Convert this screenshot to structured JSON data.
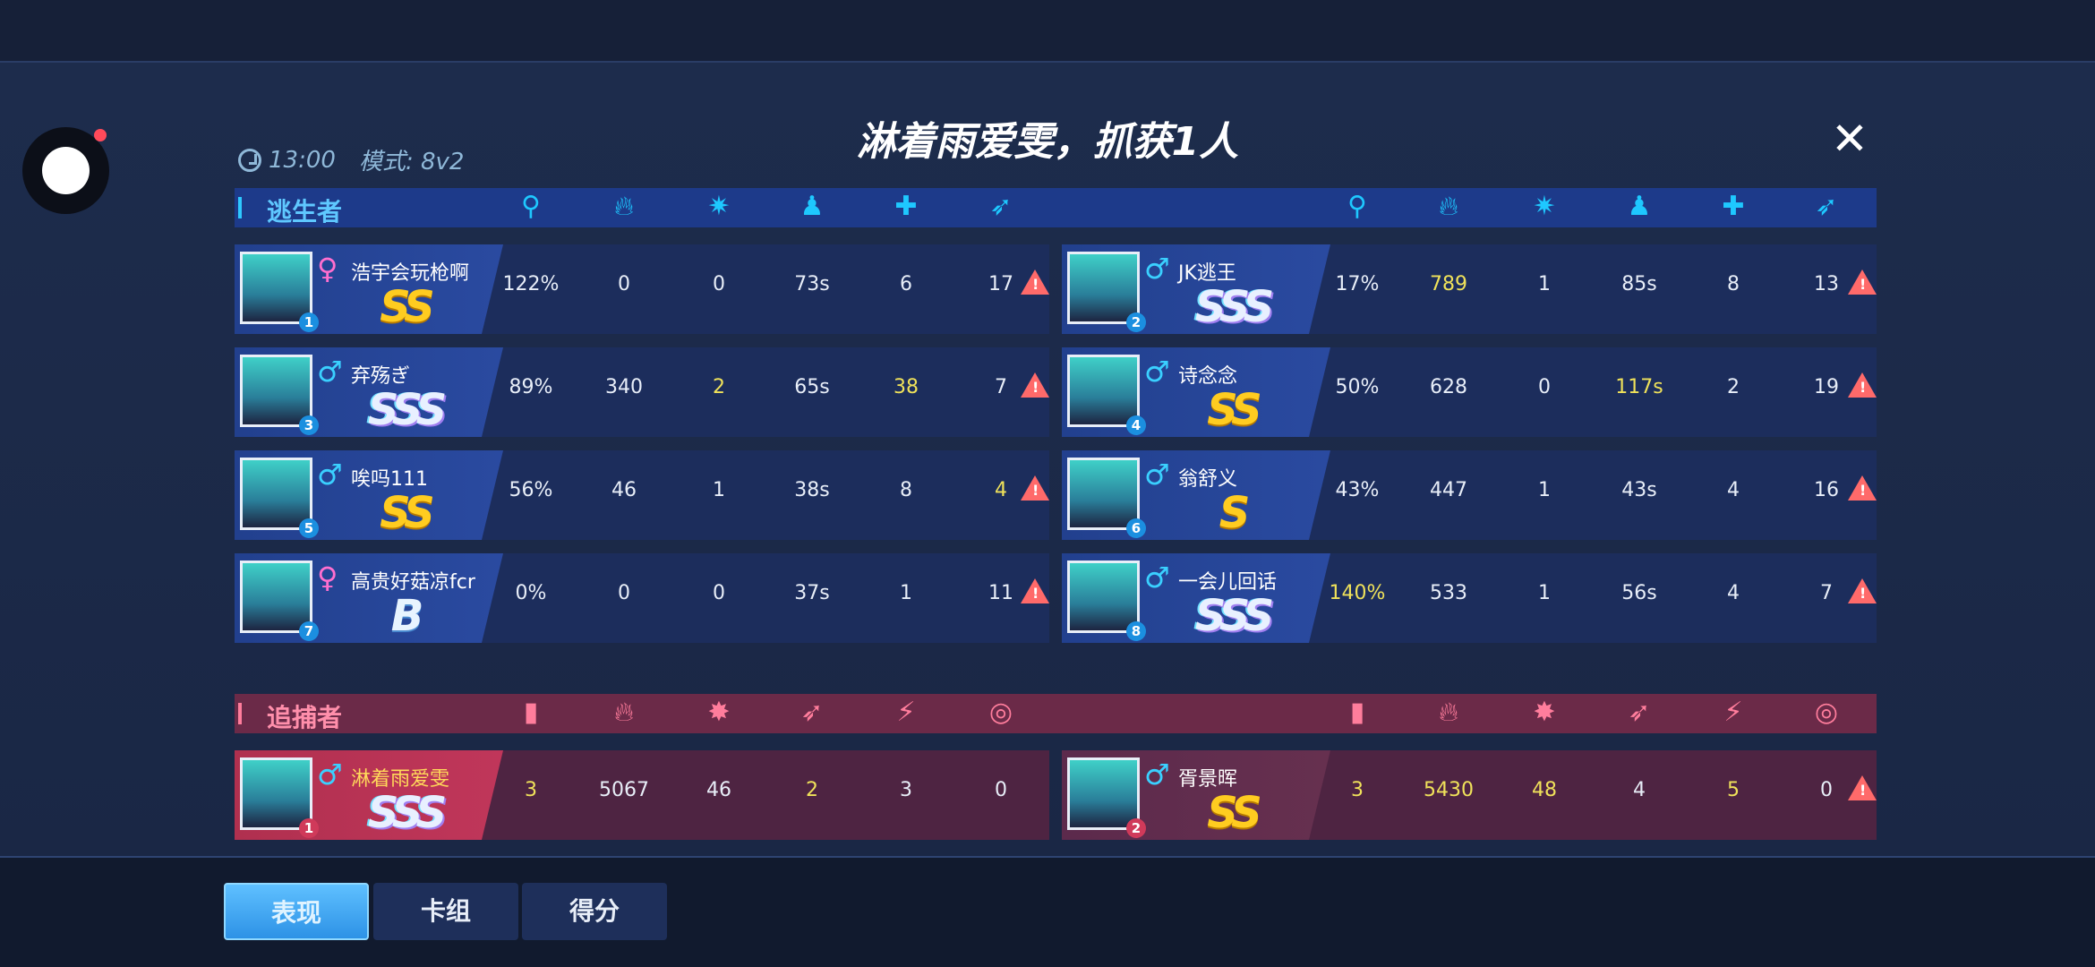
{
  "title": "淋着雨爱雯，抓获1人",
  "meta": {
    "time": "13:00",
    "mode": "模式: 8v2"
  },
  "colors": {
    "survivor_accent": "#1ec8ff",
    "hunter_accent": "#ff7d9c",
    "highlight": "#f0e25a",
    "warning": "#ff6a6a"
  },
  "survivors": {
    "label": "逃生者",
    "columns": [
      "key-icon",
      "fire-icon",
      "knockdown-icon",
      "cake-person-icon",
      "medkit-icon",
      "rescue-icon"
    ],
    "rows": [
      {
        "rank_no": "1",
        "gender": "♀",
        "name": "浩宇会玩枪啊",
        "rank": "SS",
        "stats": [
          "122%",
          "0",
          "0",
          "73s",
          "6",
          "17"
        ],
        "highlight": [],
        "warning": true
      },
      {
        "rank_no": "2",
        "gender": "♂",
        "name": "JK逃王",
        "rank": "SSS",
        "stats": [
          "17%",
          "789",
          "1",
          "85s",
          "8",
          "13"
        ],
        "highlight": [
          1
        ],
        "warning": true
      },
      {
        "rank_no": "3",
        "gender": "♂",
        "name": "弃殇ぎ",
        "rank": "SSS",
        "stats": [
          "89%",
          "340",
          "2",
          "65s",
          "38",
          "7"
        ],
        "highlight": [
          2,
          4
        ],
        "warning": true
      },
      {
        "rank_no": "4",
        "gender": "♂",
        "name": "诗念念",
        "rank": "SS",
        "stats": [
          "50%",
          "628",
          "0",
          "117s",
          "2",
          "19"
        ],
        "highlight": [
          3
        ],
        "warning": true
      },
      {
        "rank_no": "5",
        "gender": "♂",
        "name": "唉吗111",
        "rank": "SS",
        "stats": [
          "56%",
          "46",
          "1",
          "38s",
          "8",
          "4"
        ],
        "highlight": [
          5
        ],
        "warning": true
      },
      {
        "rank_no": "6",
        "gender": "♂",
        "name": "翁舒义",
        "rank": "S",
        "stats": [
          "43%",
          "447",
          "1",
          "43s",
          "4",
          "16"
        ],
        "highlight": [],
        "warning": true
      },
      {
        "rank_no": "7",
        "gender": "♀",
        "name": "高贵好菇凉fcr",
        "rank": "B",
        "stats": [
          "0%",
          "0",
          "0",
          "37s",
          "1",
          "11"
        ],
        "highlight": [],
        "warning": true
      },
      {
        "rank_no": "8",
        "gender": "♂",
        "name": "一会儿回话",
        "rank": "SSS",
        "stats": [
          "140%",
          "533",
          "1",
          "56s",
          "4",
          "7"
        ],
        "highlight": [
          0
        ],
        "warning": true
      }
    ]
  },
  "hunters": {
    "label": "追捕者",
    "columns": [
      "door-icon",
      "fire-icon",
      "hit-icon",
      "runner-icon",
      "slash-icon",
      "target-icon"
    ],
    "rows": [
      {
        "rank_no": "1",
        "gender": "♂",
        "name": "淋着雨爱雯",
        "rank": "SSS",
        "stats": [
          "3",
          "5067",
          "46",
          "2",
          "3",
          "0"
        ],
        "highlight": [
          0,
          3
        ],
        "warning": false
      },
      {
        "rank_no": "2",
        "gender": "♂",
        "name": "胥景晖",
        "rank": "SS",
        "stats": [
          "3",
          "5430",
          "48",
          "4",
          "5",
          "0"
        ],
        "highlight": [
          0,
          1,
          2,
          4
        ],
        "warning": true
      }
    ]
  },
  "tabs": [
    {
      "label": "表现",
      "active": true
    },
    {
      "label": "卡组",
      "active": false
    },
    {
      "label": "得分",
      "active": false
    }
  ]
}
